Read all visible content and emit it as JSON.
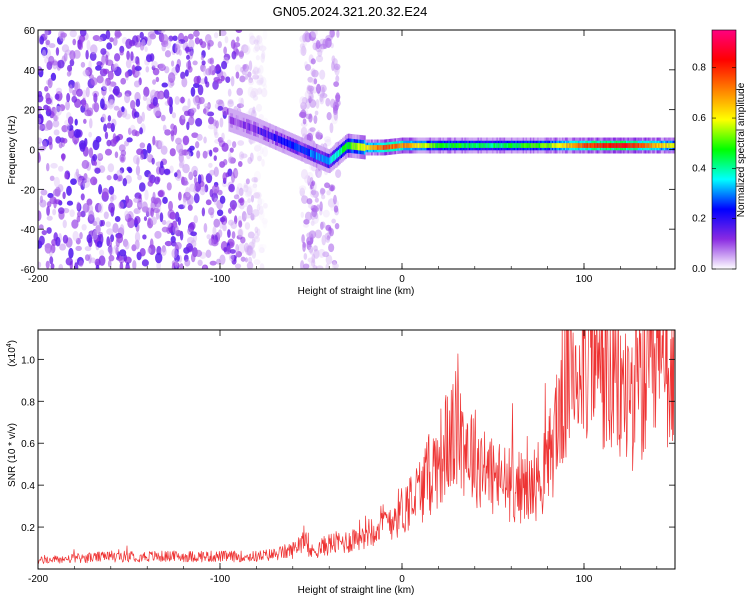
{
  "title": "GN05.2024.321.20.32.E24",
  "chart_data": [
    {
      "type": "heatmap",
      "title": "GN05.2024.321.20.32.E24",
      "xlabel": "Height of straight line (km)",
      "ylabel": "Frequency (Hz)",
      "xlim": [
        -200,
        150
      ],
      "ylim": [
        -60,
        60
      ],
      "x_ticks": [
        -200,
        -100,
        0,
        100
      ],
      "x_tick_labels": [
        "-200",
        "-100",
        "0",
        "100"
      ],
      "y_ticks": [
        -60,
        -40,
        -20,
        0,
        20,
        40,
        60
      ],
      "y_tick_labels": [
        "-60",
        "-40",
        "-20",
        "0",
        "20",
        "40",
        "60"
      ],
      "grid": false,
      "colorbar": {
        "label": "Normalized spectral amplitude",
        "range": [
          0,
          0.95
        ],
        "ticks": [
          0.0,
          0.2,
          0.4,
          0.6,
          0.8
        ],
        "tick_labels": [
          "0.0",
          "0.2",
          "0.4",
          "0.6",
          "0.8"
        ],
        "colormap": [
          "#ffffff",
          "#8a2be2",
          "#0000ff",
          "#00ffff",
          "#00ff00",
          "#ffff00",
          "#ff8000",
          "#ff0000",
          "#ff0080"
        ]
      },
      "features": {
        "noise_region_x": [
          -200,
          -75
        ],
        "noise_band_x": [
          -55,
          -35
        ],
        "noise_amplitude": 0.15,
        "ridge": {
          "x": [
            -95,
            -80,
            -70,
            -60,
            -50,
            -40,
            -30,
            -20,
            -10,
            0,
            20,
            50,
            80,
            100,
            120,
            150
          ],
          "freq": [
            15,
            10,
            6,
            2,
            -2,
            -6,
            2,
            1,
            1,
            2,
            2,
            2,
            2,
            2,
            2,
            2
          ],
          "amplitude": [
            0.1,
            0.15,
            0.2,
            0.25,
            0.3,
            0.35,
            0.5,
            0.65,
            0.8,
            0.75,
            0.5,
            0.45,
            0.55,
            0.8,
            0.9,
            0.6
          ]
        }
      }
    },
    {
      "type": "line",
      "xlabel": "Height of straight line (km)",
      "ylabel": "SNR (10 * v/v)",
      "y_multiplier_label": "(x10",
      "y_multiplier_exponent": "4",
      "y_multiplier_suffix": ")",
      "xlim": [
        -200,
        150
      ],
      "ylim": [
        0,
        1.14
      ],
      "x_ticks": [
        -200,
        -100,
        0,
        100
      ],
      "x_tick_labels": [
        "-200",
        "-100",
        "0",
        "100"
      ],
      "y_ticks": [
        0.2,
        0.4,
        0.6,
        0.8,
        1.0
      ],
      "y_tick_labels": [
        "0.2",
        "0.4",
        "0.6",
        "0.8",
        "1.0"
      ],
      "series_color": "#ee3333",
      "grid": false,
      "trend": {
        "x": [
          -200,
          -180,
          -160,
          -140,
          -120,
          -100,
          -80,
          -70,
          -60,
          -55,
          -50,
          -40,
          -30,
          -20,
          -10,
          0,
          10,
          20,
          25,
          30,
          35,
          40,
          50,
          60,
          70,
          80,
          85,
          90,
          95,
          100,
          105,
          110,
          115,
          120,
          130,
          140,
          150
        ],
        "y": [
          0.04,
          0.05,
          0.06,
          0.06,
          0.06,
          0.06,
          0.06,
          0.07,
          0.09,
          0.14,
          0.08,
          0.12,
          0.13,
          0.18,
          0.22,
          0.28,
          0.38,
          0.52,
          0.6,
          0.66,
          0.6,
          0.54,
          0.44,
          0.4,
          0.38,
          0.48,
          0.7,
          0.9,
          1.0,
          1.07,
          1.05,
          0.95,
          0.88,
          0.84,
          0.85,
          0.92,
          0.98
        ]
      },
      "noise_amplitude_fraction": 0.45
    }
  ]
}
